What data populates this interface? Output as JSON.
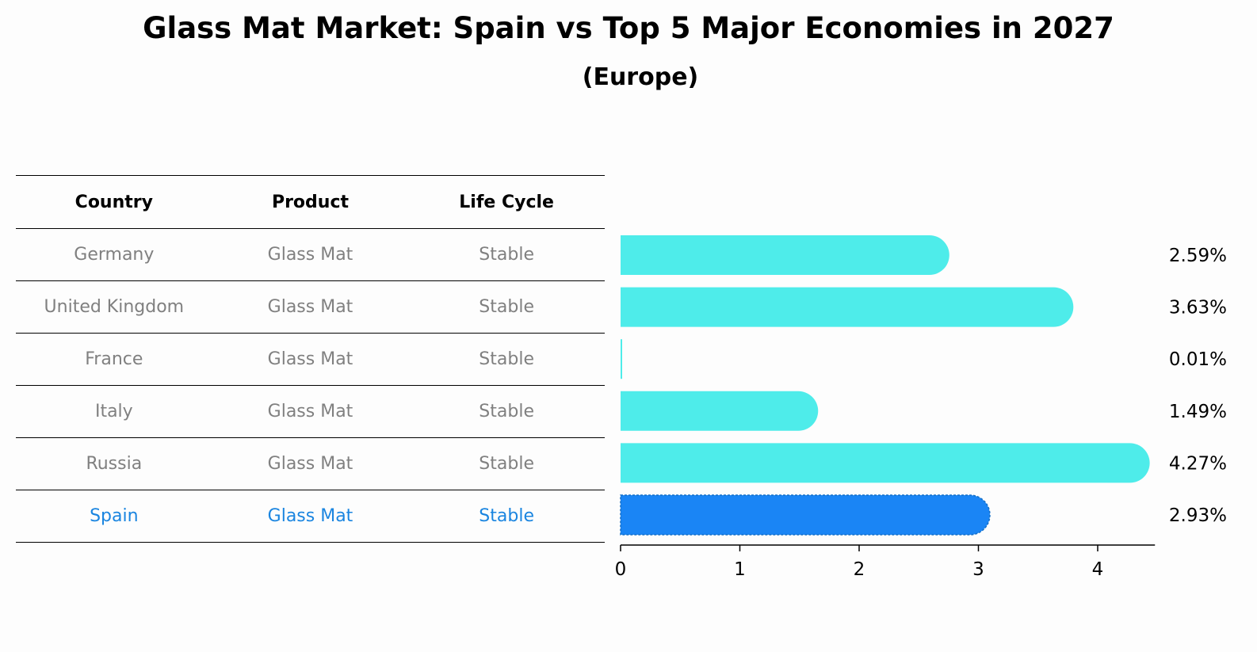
{
  "title": "Glass Mat Market: Spain vs Top 5 Major Economies in 2027",
  "subtitle": "(Europe)",
  "table": {
    "headers": [
      "Country",
      "Product",
      "Life Cycle"
    ],
    "rows": [
      [
        "Germany",
        "Glass Mat",
        "Stable"
      ],
      [
        "United Kingdom",
        "Glass Mat",
        "Stable"
      ],
      [
        "France",
        "Glass Mat",
        "Stable"
      ],
      [
        "Italy",
        "Glass Mat",
        "Stable"
      ],
      [
        "Russia",
        "Glass Mat",
        "Stable"
      ],
      [
        "Spain",
        "Glass Mat",
        "Stable"
      ]
    ],
    "highlight_row": 5
  },
  "colors": {
    "bar": "#4eecea",
    "highlight_bar": "#1a85f5",
    "highlight_text": "#1a85e0",
    "muted_text": "#808080"
  },
  "chart_data": {
    "type": "bar",
    "orientation": "horizontal",
    "categories": [
      "Germany",
      "United Kingdom",
      "France",
      "Italy",
      "Russia",
      "Spain"
    ],
    "values": [
      2.59,
      3.63,
      0.01,
      1.49,
      4.27,
      2.93
    ],
    "value_labels": [
      "2.59%",
      "3.63%",
      "0.01%",
      "1.49%",
      "4.27%",
      "2.93%"
    ],
    "highlight_category": "Spain",
    "xlim": [
      0,
      4.48
    ],
    "xticks": [
      0,
      1,
      2,
      3,
      4
    ],
    "xtick_labels": [
      "0",
      "1",
      "2",
      "3",
      "4"
    ],
    "grid": false
  }
}
